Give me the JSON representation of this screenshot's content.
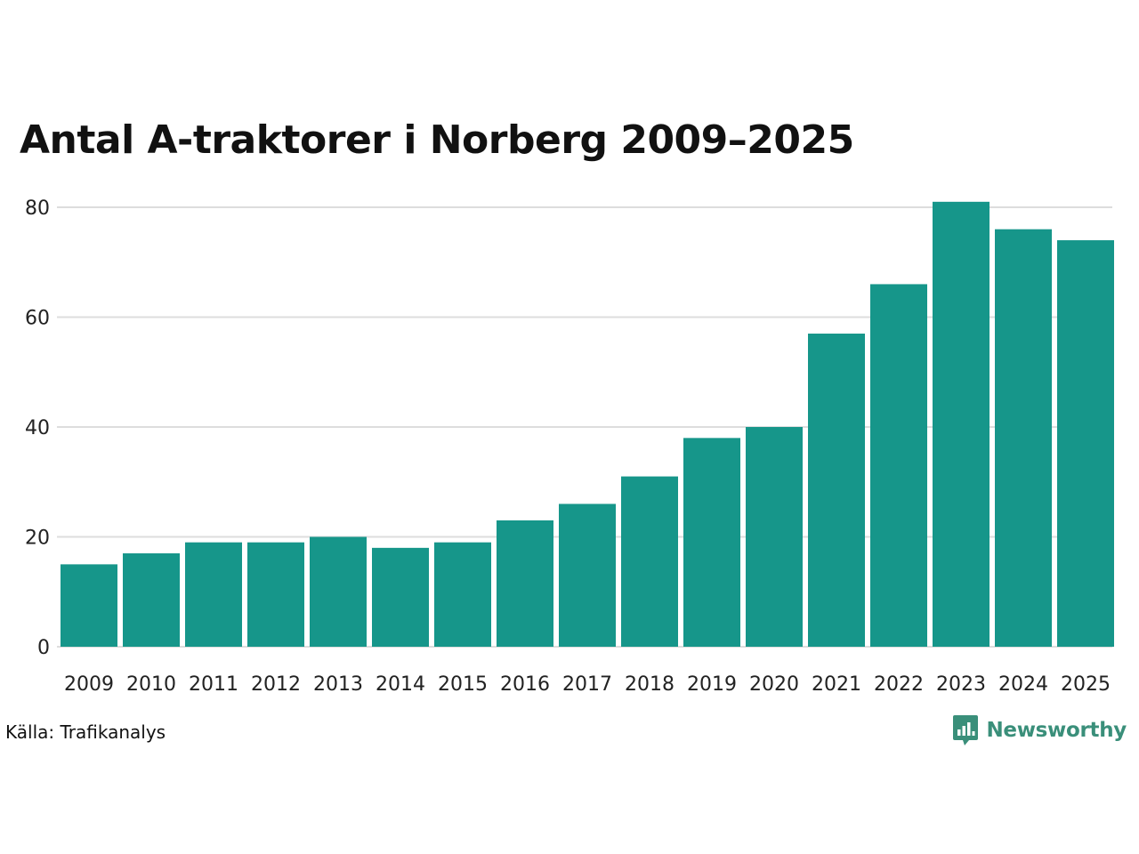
{
  "chart_data": {
    "type": "bar",
    "title": "Antal A-traktorer i Norberg 2009–2025",
    "categories": [
      "2009",
      "2010",
      "2011",
      "2012",
      "2013",
      "2014",
      "2015",
      "2016",
      "2017",
      "2018",
      "2019",
      "2020",
      "2021",
      "2022",
      "2023",
      "2024",
      "2025"
    ],
    "values": [
      15,
      17,
      19,
      19,
      20,
      18,
      19,
      23,
      26,
      31,
      38,
      40,
      57,
      66,
      81,
      76,
      74
    ],
    "y_ticks": [
      "0",
      "20",
      "40",
      "60",
      "80"
    ],
    "ylim": [
      0,
      80
    ],
    "xlabel": "",
    "ylabel": "",
    "grid": true,
    "bar_color": "#16968a",
    "grid_color": "#dddddd"
  },
  "footer": {
    "source": "Källa: Trafikanalys",
    "brand": "Newsworthy",
    "brand_color": "#3a8f7a",
    "brand_icon": "bar-chart-speech-bubble-icon"
  }
}
